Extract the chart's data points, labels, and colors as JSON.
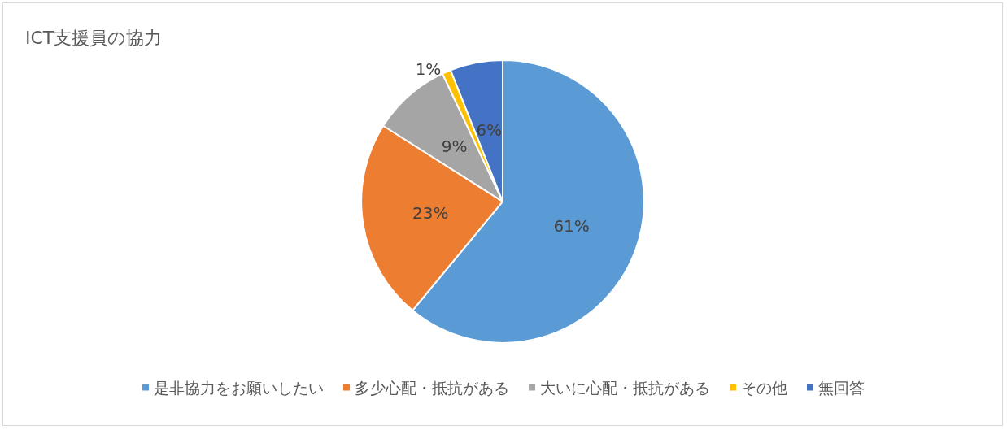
{
  "chart_data": {
    "type": "pie",
    "title": "ICT支援員の協力",
    "categories": [
      "是非協力をお願いしたい",
      "多少心配・抵抗がある",
      "大いに心配・抵抗がある",
      "その他",
      "無回答"
    ],
    "values": [
      61,
      23,
      9,
      1,
      6
    ],
    "colors": [
      "#5b9bd5",
      "#ed7d31",
      "#a5a5a5",
      "#ffc000",
      "#4472c4"
    ],
    "value_labels": [
      "61%",
      "23%",
      "9%",
      "1%",
      "6%"
    ],
    "legend": "bottom"
  }
}
